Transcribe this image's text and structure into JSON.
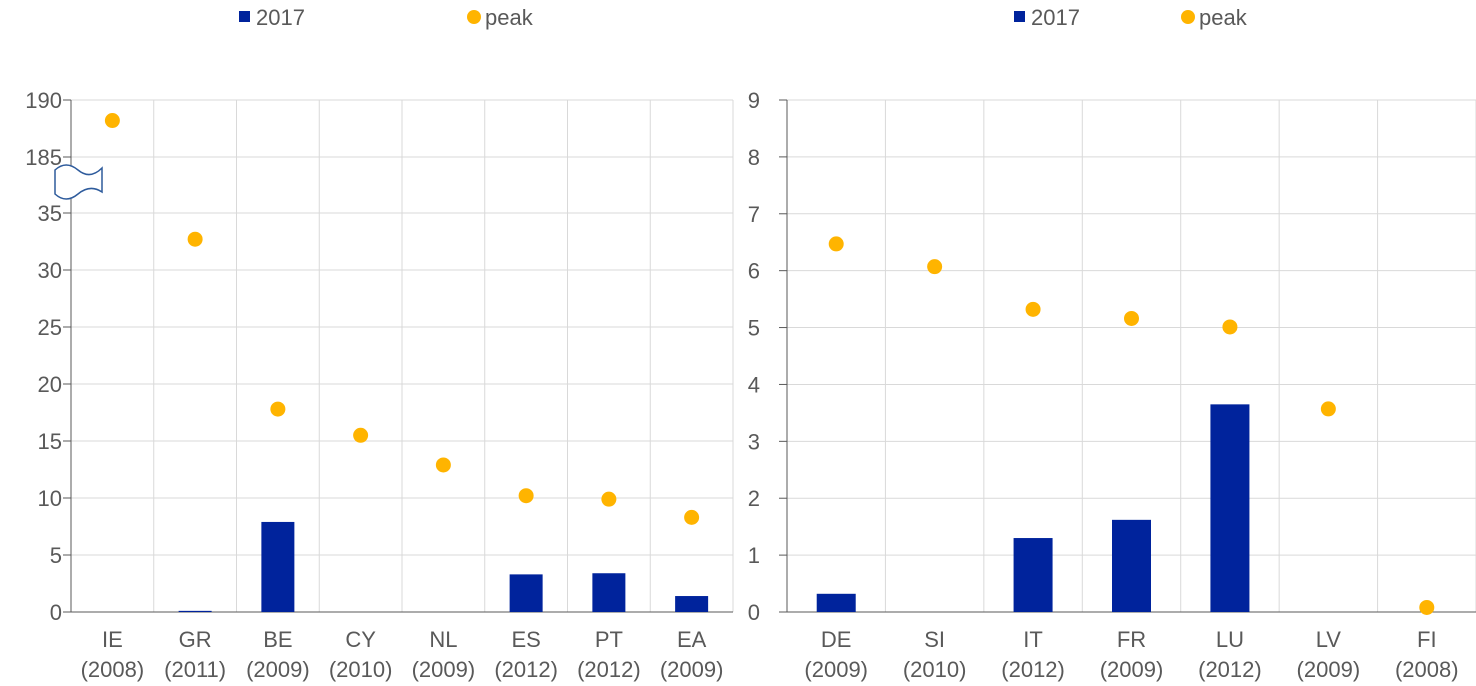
{
  "chart_data": [
    {
      "type": "bar",
      "legend": {
        "position": "top",
        "entries": [
          {
            "label": "2017",
            "marker": "square",
            "color": "#00239C"
          },
          {
            "label": "peak",
            "marker": "circle",
            "color": "#FFB400"
          }
        ]
      },
      "categories": [
        "IE\n(2008)",
        "GR\n(2011)",
        "BE\n(2009)",
        "CY\n(2010)",
        "NL\n(2009)",
        "ES\n(2012)",
        "PT\n(2012)",
        "EA\n(2009)"
      ],
      "series": [
        {
          "name": "2017",
          "type": "bar",
          "color": "#00239C",
          "values": [
            0,
            0.1,
            7.9,
            0,
            0,
            3.3,
            3.4,
            1.4
          ]
        },
        {
          "name": "peak",
          "type": "scatter",
          "color": "#FFB400",
          "values": [
            188.2,
            32.7,
            17.8,
            15.5,
            12.9,
            10.2,
            9.9,
            8.3
          ]
        }
      ],
      "axis_break": {
        "from": 35,
        "to": 185
      },
      "y_ticks": [
        0,
        5,
        10,
        15,
        20,
        25,
        30,
        35,
        185,
        190
      ],
      "y_tick_labels": [
        "0",
        "5",
        "10",
        "15",
        "20",
        "25",
        "30",
        "35",
        "185",
        "190"
      ],
      "ylim": [
        0,
        190
      ],
      "grid": true,
      "title": "",
      "xlabel": "",
      "ylabel": ""
    },
    {
      "type": "bar",
      "legend": {
        "position": "top",
        "entries": [
          {
            "label": "2017",
            "marker": "square",
            "color": "#00239C"
          },
          {
            "label": "peak",
            "marker": "circle",
            "color": "#FFB400"
          }
        ]
      },
      "categories": [
        "DE\n(2009)",
        "SI\n(2010)",
        "IT\n(2012)",
        "FR\n(2009)",
        "LU\n(2012)",
        "LV\n(2009)",
        "FI\n(2008)"
      ],
      "series": [
        {
          "name": "2017",
          "type": "bar",
          "color": "#00239C",
          "values": [
            0.32,
            0,
            1.3,
            1.62,
            3.65,
            0,
            0
          ]
        },
        {
          "name": "peak",
          "type": "scatter",
          "color": "#FFB400",
          "values": [
            6.47,
            6.07,
            5.32,
            5.16,
            5.01,
            3.57,
            0.08
          ]
        }
      ],
      "y_ticks": [
        0,
        1,
        2,
        3,
        4,
        5,
        6,
        7,
        8,
        9
      ],
      "y_tick_labels": [
        "0",
        "1",
        "2",
        "3",
        "4",
        "5",
        "6",
        "7",
        "8",
        "9"
      ],
      "ylim": [
        0,
        9
      ],
      "grid": true,
      "title": "",
      "xlabel": "",
      "ylabel": ""
    }
  ]
}
